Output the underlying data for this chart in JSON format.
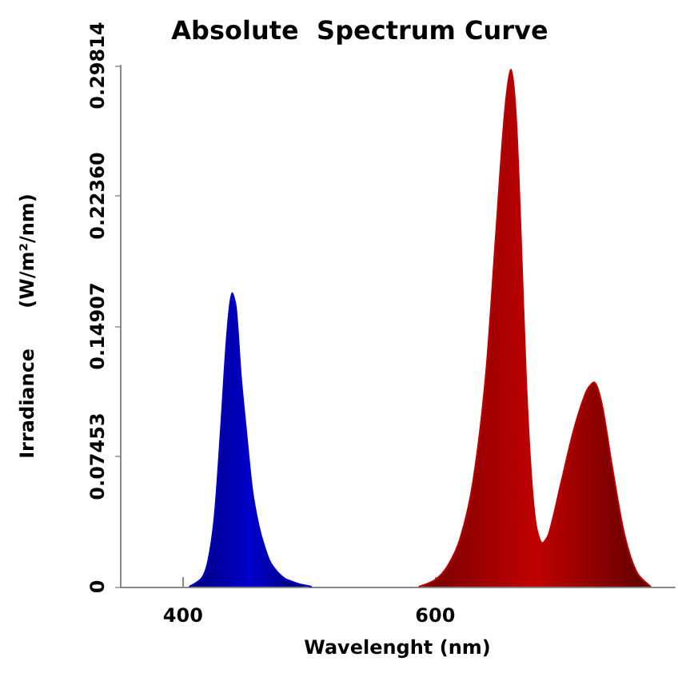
{
  "chart_data": {
    "type": "area",
    "title": "Absolute  Spectrum Curve",
    "xlabel": "Wavelenght (nm)",
    "ylabel": "Irradiance      (W/m²/nm)",
    "xlim": [
      350,
      790
    ],
    "xticks": [
      400,
      600
    ],
    "ylim": [
      0,
      0.29814
    ],
    "yticks": [
      0,
      0.07453,
      0.14907,
      {
        "value": 0.2236,
        "label": "0.22360"
      },
      0.29814
    ],
    "series": [
      {
        "color": "#0000cc",
        "x": [
          405,
          415,
          420,
          425,
          430,
          435,
          439,
          442,
          446,
          450,
          455,
          460,
          465,
          470,
          480,
          490,
          502
        ],
        "values": [
          0,
          0.005,
          0.015,
          0.04,
          0.09,
          0.145,
          0.168,
          0.16,
          0.12,
          0.09,
          0.055,
          0.035,
          0.022,
          0.013,
          0.005,
          0.002,
          0
        ]
      },
      {
        "color": "#c00000",
        "x": [
          587,
          600,
          610,
          620,
          630,
          640,
          648,
          655,
          660,
          664,
          668,
          672,
          676,
          680,
          685,
          690,
          700,
          710,
          720,
          726,
          732,
          740,
          750,
          760,
          771
        ],
        "values": [
          0,
          0.004,
          0.012,
          0.028,
          0.06,
          0.12,
          0.2,
          0.27,
          0.296,
          0.27,
          0.2,
          0.12,
          0.065,
          0.035,
          0.025,
          0.03,
          0.06,
          0.09,
          0.112,
          0.117,
          0.105,
          0.07,
          0.03,
          0.008,
          0
        ]
      }
    ]
  }
}
